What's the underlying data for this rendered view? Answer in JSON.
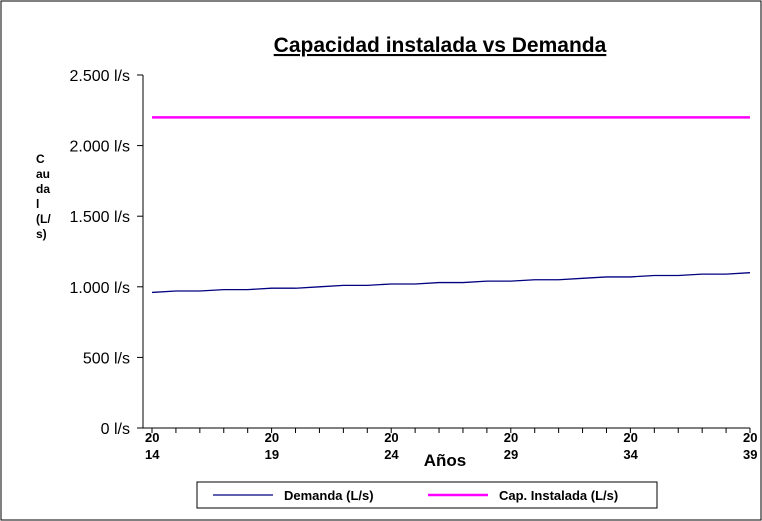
{
  "chart_data": {
    "type": "line",
    "title": "Capacidad instalada vs Demanda",
    "x_label": "Años",
    "y_label": "Caudal (L/s)",
    "categories": [
      "2014",
      null,
      null,
      null,
      null,
      "2019",
      null,
      null,
      null,
      null,
      "2024",
      null,
      null,
      null,
      null,
      "2029",
      null,
      null,
      null,
      null,
      "2034",
      null,
      null,
      null,
      null,
      "2039"
    ],
    "series": [
      {
        "name": "Demanda (L/s)",
        "color": "#000080",
        "values": [
          960,
          970,
          970,
          980,
          980,
          990,
          990,
          1000,
          1010,
          1010,
          1020,
          1020,
          1030,
          1030,
          1040,
          1040,
          1050,
          1050,
          1060,
          1070,
          1070,
          1080,
          1080,
          1090,
          1090,
          1100
        ]
      },
      {
        "name": "Cap. Instalada (L/s)",
        "color": "#ff00ff",
        "values": [
          2200,
          2200,
          2200,
          2200,
          2200,
          2200,
          2200,
          2200,
          2200,
          2200,
          2200,
          2200,
          2200,
          2200,
          2200,
          2200,
          2200,
          2200,
          2200,
          2200,
          2200,
          2200,
          2200,
          2200,
          2200,
          2200
        ]
      }
    ],
    "ylim": [
      0,
      2500
    ],
    "yticks": [
      {
        "value": 0,
        "label": "0 l/s"
      },
      {
        "value": 500,
        "label": "500 l/s"
      },
      {
        "value": 1000,
        "label": "1.000 l/s"
      },
      {
        "value": 1500,
        "label": "1.500 l/s"
      },
      {
        "value": 2000,
        "label": "2.000 l/s"
      },
      {
        "value": 2500,
        "label": "2.500 l/s"
      }
    ],
    "legend": "bottom"
  }
}
